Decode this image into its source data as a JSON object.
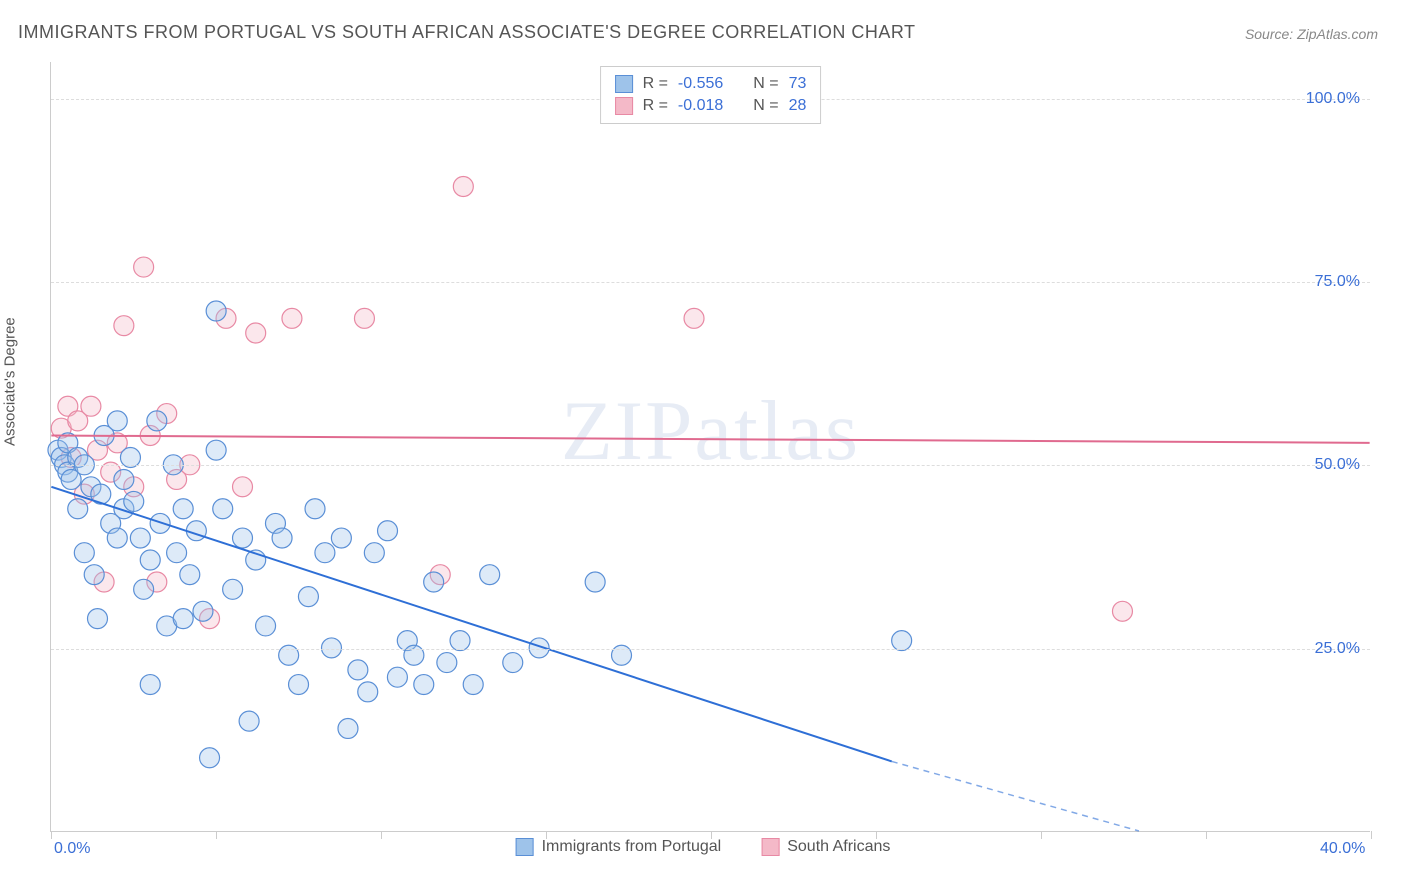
{
  "title": "IMMIGRANTS FROM PORTUGAL VS SOUTH AFRICAN ASSOCIATE'S DEGREE CORRELATION CHART",
  "source": "Source: ZipAtlas.com",
  "watermark": "ZIPatlas",
  "y_axis_label": "Associate's Degree",
  "chart": {
    "type": "scatter",
    "background_color": "#ffffff",
    "grid_color": "#dddddd",
    "axis_color": "#cccccc",
    "tick_label_color": "#3b6fd6",
    "xlim": [
      0,
      40
    ],
    "ylim": [
      0,
      105
    ],
    "x_ticks": [
      0,
      5,
      10,
      15,
      20,
      25,
      30,
      35,
      40
    ],
    "x_tick_labels": {
      "0": "0.0%",
      "40": "40.0%"
    },
    "y_gridlines": [
      25,
      50,
      75,
      100
    ],
    "y_tick_labels": {
      "25": "25.0%",
      "50": "50.0%",
      "75": "75.0%",
      "100": "100.0%"
    },
    "marker_radius": 10,
    "marker_fill_opacity": 0.35,
    "line_width": 2,
    "series": {
      "portugal": {
        "label": "Immigrants from Portugal",
        "color_fill": "#9ec3ea",
        "color_stroke": "#5a8fd6",
        "line_color": "#2e6fd6",
        "R": "-0.556",
        "N": "73",
        "trend": {
          "x1": 0,
          "y1": 47,
          "x2": 25.5,
          "y2": 9.5
        },
        "trend_ext": {
          "x1": 25.5,
          "y1": 9.5,
          "x2": 33,
          "y2": 0
        },
        "points": [
          [
            0.2,
            52
          ],
          [
            0.3,
            51
          ],
          [
            0.4,
            50
          ],
          [
            0.5,
            53
          ],
          [
            0.5,
            49
          ],
          [
            0.6,
            48
          ],
          [
            0.8,
            51
          ],
          [
            0.8,
            44
          ],
          [
            1.0,
            38
          ],
          [
            1.0,
            50
          ],
          [
            1.2,
            47
          ],
          [
            1.3,
            35
          ],
          [
            1.4,
            29
          ],
          [
            1.5,
            46
          ],
          [
            1.6,
            54
          ],
          [
            1.8,
            42
          ],
          [
            2.0,
            56
          ],
          [
            2.0,
            40
          ],
          [
            2.2,
            44
          ],
          [
            2.2,
            48
          ],
          [
            2.4,
            51
          ],
          [
            2.5,
            45
          ],
          [
            2.7,
            40
          ],
          [
            2.8,
            33
          ],
          [
            3.0,
            37
          ],
          [
            3.0,
            20
          ],
          [
            3.2,
            56
          ],
          [
            3.3,
            42
          ],
          [
            3.5,
            28
          ],
          [
            3.7,
            50
          ],
          [
            3.8,
            38
          ],
          [
            4.0,
            44
          ],
          [
            4.0,
            29
          ],
          [
            4.2,
            35
          ],
          [
            4.4,
            41
          ],
          [
            4.6,
            30
          ],
          [
            4.8,
            10
          ],
          [
            5.0,
            52
          ],
          [
            5.0,
            71
          ],
          [
            5.2,
            44
          ],
          [
            5.5,
            33
          ],
          [
            5.8,
            40
          ],
          [
            6.0,
            15
          ],
          [
            6.2,
            37
          ],
          [
            6.5,
            28
          ],
          [
            6.8,
            42
          ],
          [
            7.0,
            40
          ],
          [
            7.2,
            24
          ],
          [
            7.5,
            20
          ],
          [
            7.8,
            32
          ],
          [
            8.0,
            44
          ],
          [
            8.3,
            38
          ],
          [
            8.5,
            25
          ],
          [
            8.8,
            40
          ],
          [
            9.0,
            14
          ],
          [
            9.3,
            22
          ],
          [
            9.6,
            19
          ],
          [
            9.8,
            38
          ],
          [
            10.2,
            41
          ],
          [
            10.5,
            21
          ],
          [
            10.8,
            26
          ],
          [
            11.0,
            24
          ],
          [
            11.3,
            20
          ],
          [
            11.6,
            34
          ],
          [
            12.0,
            23
          ],
          [
            12.4,
            26
          ],
          [
            12.8,
            20
          ],
          [
            13.3,
            35
          ],
          [
            14.0,
            23
          ],
          [
            14.8,
            25
          ],
          [
            16.5,
            34
          ],
          [
            17.3,
            24
          ],
          [
            25.8,
            26
          ]
        ]
      },
      "south_africa": {
        "label": "South Africans",
        "color_fill": "#f4b9c8",
        "color_stroke": "#e889a4",
        "line_color": "#e06a8f",
        "R": "-0.018",
        "N": "28",
        "trend": {
          "x1": 0,
          "y1": 54,
          "x2": 40,
          "y2": 53
        },
        "points": [
          [
            0.3,
            55
          ],
          [
            0.5,
            58
          ],
          [
            0.6,
            51
          ],
          [
            0.8,
            56
          ],
          [
            1.0,
            46
          ],
          [
            1.2,
            58
          ],
          [
            1.4,
            52
          ],
          [
            1.6,
            34
          ],
          [
            1.8,
            49
          ],
          [
            2.0,
            53
          ],
          [
            2.2,
            69
          ],
          [
            2.5,
            47
          ],
          [
            2.8,
            77
          ],
          [
            3.0,
            54
          ],
          [
            3.2,
            34
          ],
          [
            3.5,
            57
          ],
          [
            3.8,
            48
          ],
          [
            4.2,
            50
          ],
          [
            4.8,
            29
          ],
          [
            5.3,
            70
          ],
          [
            5.8,
            47
          ],
          [
            6.2,
            68
          ],
          [
            7.3,
            70
          ],
          [
            9.5,
            70
          ],
          [
            11.8,
            35
          ],
          [
            12.5,
            88
          ],
          [
            19.5,
            70
          ],
          [
            32.5,
            30
          ]
        ]
      }
    }
  },
  "legend_top": [
    {
      "swatch_fill": "#9ec3ea",
      "swatch_stroke": "#5a8fd6",
      "r_label": "R =",
      "r_val": "-0.556",
      "n_label": "N =",
      "n_val": "73"
    },
    {
      "swatch_fill": "#f4b9c8",
      "swatch_stroke": "#e889a4",
      "r_label": "R =",
      "r_val": "-0.018",
      "n_label": "N =",
      "n_val": "28"
    }
  ],
  "legend_bottom": [
    {
      "swatch_fill": "#9ec3ea",
      "swatch_stroke": "#5a8fd6",
      "label": "Immigrants from Portugal"
    },
    {
      "swatch_fill": "#f4b9c8",
      "swatch_stroke": "#e889a4",
      "label": "South Africans"
    }
  ]
}
